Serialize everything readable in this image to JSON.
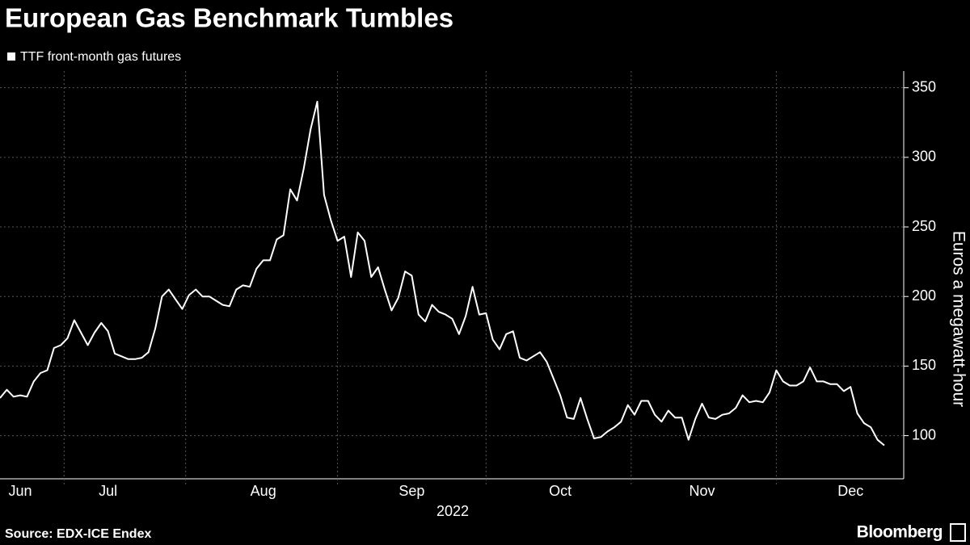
{
  "chart_data": {
    "type": "line",
    "title": "European Gas Benchmark Tumbles",
    "xlabel": "2022",
    "ylabel": "Euros a megawatt-hour",
    "source": "Source: EDX-ICE Endex",
    "brand": "Bloomberg",
    "categories": [
      null,
      null,
      null,
      "Jun",
      null,
      null,
      null,
      null,
      null,
      null,
      null,
      null,
      null,
      null,
      null,
      null,
      "Jul",
      null,
      null,
      null,
      null,
      null,
      null,
      null,
      null,
      null,
      null,
      null,
      null,
      null,
      null,
      null,
      null,
      null,
      null,
      null,
      null,
      null,
      null,
      "Aug",
      null,
      null,
      null,
      null,
      null,
      null,
      null,
      null,
      null,
      null,
      null,
      null,
      null,
      null,
      null,
      null,
      null,
      null,
      null,
      null,
      null,
      "Sep",
      null,
      null,
      null,
      null,
      null,
      null,
      null,
      null,
      null,
      null,
      null,
      null,
      null,
      null,
      null,
      null,
      null,
      null,
      null,
      null,
      null,
      "Oct",
      null,
      null,
      null,
      null,
      null,
      null,
      null,
      null,
      null,
      null,
      null,
      null,
      null,
      null,
      null,
      null,
      null,
      null,
      null,
      null,
      "Nov",
      null,
      null,
      null,
      null,
      null,
      null,
      null,
      null,
      null,
      null,
      null,
      null,
      null,
      null,
      null,
      null,
      null,
      null,
      null,
      null,
      null,
      "Dec",
      null,
      null,
      null,
      null,
      null
    ],
    "series": [
      {
        "name": "TTF front-month gas futures",
        "color": "#ffffff",
        "values": [
          127,
          133,
          128,
          129,
          128,
          139,
          145,
          147,
          163,
          165,
          170,
          183,
          174,
          165,
          174,
          181,
          175,
          159,
          157,
          155,
          155,
          156,
          160,
          177,
          200,
          205,
          198,
          191,
          201,
          205,
          200,
          200,
          197,
          194,
          193,
          205,
          208,
          207,
          220,
          226,
          226,
          241,
          244,
          277,
          269,
          292,
          320,
          340,
          273,
          255,
          240,
          243,
          214,
          246,
          240,
          214,
          221,
          205,
          190,
          199,
          218,
          215,
          187,
          182,
          194,
          189,
          187,
          184,
          173,
          186,
          207,
          187,
          188,
          169,
          162,
          173,
          175,
          156,
          154,
          157,
          160,
          153,
          141,
          129,
          113,
          112,
          127,
          112,
          98,
          99,
          103,
          106,
          110,
          122,
          115,
          125,
          125,
          115,
          110,
          118,
          113,
          113,
          97,
          112,
          123,
          113,
          112,
          115,
          116,
          120,
          129,
          124,
          125,
          124,
          131,
          147,
          139,
          136,
          136,
          139,
          149,
          139,
          139,
          137,
          137,
          132,
          135,
          116,
          109,
          106,
          97,
          93
        ]
      }
    ],
    "ylim": [
      69,
      362
    ],
    "yticks": [
      100,
      150,
      200,
      250,
      300,
      350
    ],
    "grid": true,
    "y_axis_side": "right"
  }
}
